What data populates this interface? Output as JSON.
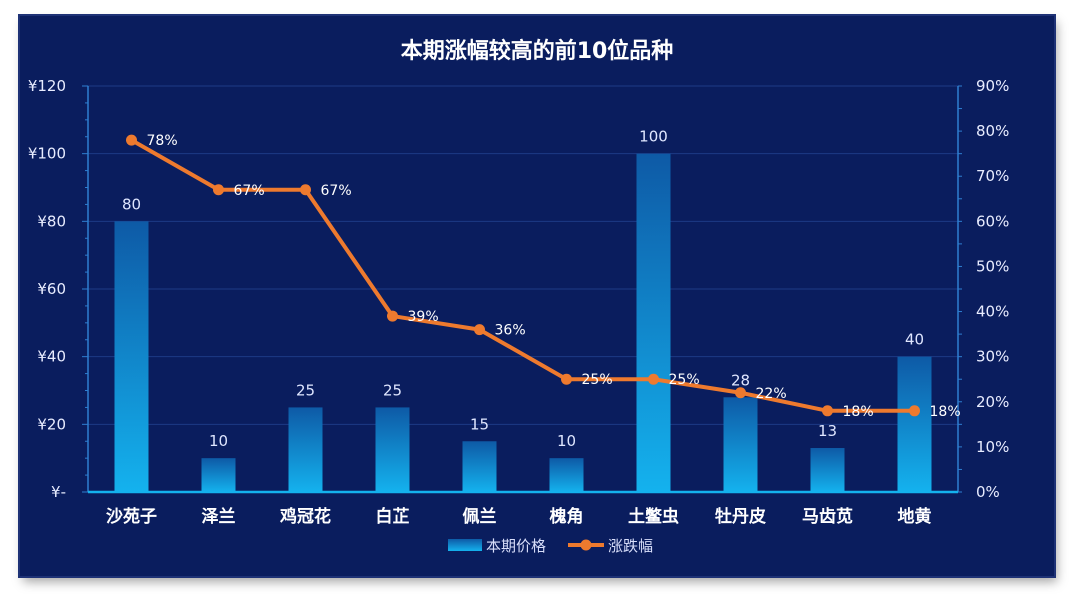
{
  "chart_data": {
    "type": "bar",
    "title": "本期涨幅较高的前10位品种",
    "categories": [
      "沙苑子",
      "泽兰",
      "鸡冠花",
      "白芷",
      "佩兰",
      "槐角",
      "土鳖虫",
      "牡丹皮",
      "马齿苋",
      "地黄"
    ],
    "series": [
      {
        "name": "本期价格",
        "type": "bar",
        "axis": "left",
        "values": [
          80,
          10,
          25,
          25,
          15,
          10,
          100,
          28,
          13,
          40
        ],
        "labels": [
          "80",
          "10",
          "25",
          "25",
          "15",
          "10",
          "100",
          "28",
          "13",
          "40"
        ]
      },
      {
        "name": "涨跌幅",
        "type": "line",
        "axis": "right",
        "values": [
          78,
          67,
          67,
          39,
          36,
          25,
          25,
          22,
          18,
          18
        ],
        "labels": [
          "78%",
          "67%",
          "67%",
          "39%",
          "36%",
          "25%",
          "25%",
          "22%",
          "18%",
          "18%"
        ]
      }
    ],
    "left_axis": {
      "ylim": [
        0,
        120
      ],
      "ticks": [
        0,
        20,
        40,
        60,
        80,
        100,
        120
      ],
      "tick_labels": [
        "¥-",
        "¥20",
        "¥40",
        "¥60",
        "¥80",
        "¥100",
        "¥120"
      ]
    },
    "right_axis": {
      "ylim": [
        0,
        90
      ],
      "ticks": [
        0,
        10,
        20,
        30,
        40,
        50,
        60,
        70,
        80,
        90
      ],
      "tick_labels": [
        "0%",
        "10%",
        "20%",
        "30%",
        "40%",
        "50%",
        "60%",
        "70%",
        "80%",
        "90%"
      ]
    },
    "grid": true,
    "legend_position": "bottom",
    "colors": {
      "background": "#0a1d5e",
      "bar_top": "#0e5aa6",
      "bar_bottom": "#14b2ee",
      "line": "#ee7a2e",
      "grid": "#1d3a86",
      "axis": "#2e7fd1"
    }
  }
}
